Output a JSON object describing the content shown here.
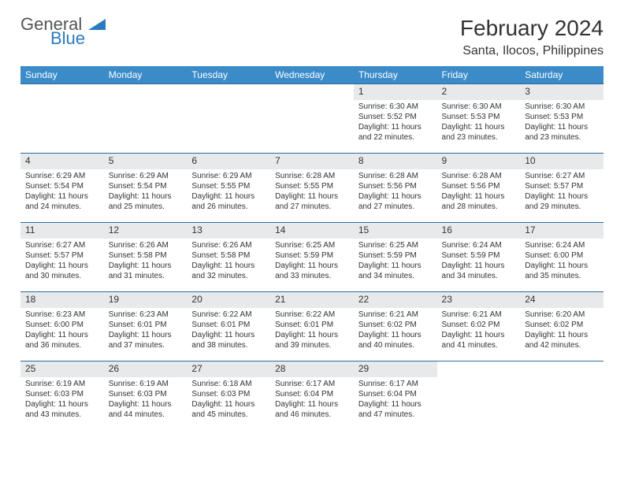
{
  "logo": {
    "text1": "General",
    "text2": "Blue"
  },
  "title": "February 2024",
  "location": "Santa, Ilocos, Philippines",
  "colors": {
    "header_bg": "#3b8bc9",
    "header_text": "#ffffff",
    "daynum_bg": "#e8e9ea",
    "row_border": "#2a6aa0",
    "text": "#333333",
    "logo_blue": "#2a7bbf"
  },
  "weekdays": [
    "Sunday",
    "Monday",
    "Tuesday",
    "Wednesday",
    "Thursday",
    "Friday",
    "Saturday"
  ],
  "weeks": [
    [
      {
        "n": "",
        "sr": "",
        "ss": "",
        "dl": ""
      },
      {
        "n": "",
        "sr": "",
        "ss": "",
        "dl": ""
      },
      {
        "n": "",
        "sr": "",
        "ss": "",
        "dl": ""
      },
      {
        "n": "",
        "sr": "",
        "ss": "",
        "dl": ""
      },
      {
        "n": "1",
        "sr": "Sunrise: 6:30 AM",
        "ss": "Sunset: 5:52 PM",
        "dl": "Daylight: 11 hours and 22 minutes."
      },
      {
        "n": "2",
        "sr": "Sunrise: 6:30 AM",
        "ss": "Sunset: 5:53 PM",
        "dl": "Daylight: 11 hours and 23 minutes."
      },
      {
        "n": "3",
        "sr": "Sunrise: 6:30 AM",
        "ss": "Sunset: 5:53 PM",
        "dl": "Daylight: 11 hours and 23 minutes."
      }
    ],
    [
      {
        "n": "4",
        "sr": "Sunrise: 6:29 AM",
        "ss": "Sunset: 5:54 PM",
        "dl": "Daylight: 11 hours and 24 minutes."
      },
      {
        "n": "5",
        "sr": "Sunrise: 6:29 AM",
        "ss": "Sunset: 5:54 PM",
        "dl": "Daylight: 11 hours and 25 minutes."
      },
      {
        "n": "6",
        "sr": "Sunrise: 6:29 AM",
        "ss": "Sunset: 5:55 PM",
        "dl": "Daylight: 11 hours and 26 minutes."
      },
      {
        "n": "7",
        "sr": "Sunrise: 6:28 AM",
        "ss": "Sunset: 5:55 PM",
        "dl": "Daylight: 11 hours and 27 minutes."
      },
      {
        "n": "8",
        "sr": "Sunrise: 6:28 AM",
        "ss": "Sunset: 5:56 PM",
        "dl": "Daylight: 11 hours and 27 minutes."
      },
      {
        "n": "9",
        "sr": "Sunrise: 6:28 AM",
        "ss": "Sunset: 5:56 PM",
        "dl": "Daylight: 11 hours and 28 minutes."
      },
      {
        "n": "10",
        "sr": "Sunrise: 6:27 AM",
        "ss": "Sunset: 5:57 PM",
        "dl": "Daylight: 11 hours and 29 minutes."
      }
    ],
    [
      {
        "n": "11",
        "sr": "Sunrise: 6:27 AM",
        "ss": "Sunset: 5:57 PM",
        "dl": "Daylight: 11 hours and 30 minutes."
      },
      {
        "n": "12",
        "sr": "Sunrise: 6:26 AM",
        "ss": "Sunset: 5:58 PM",
        "dl": "Daylight: 11 hours and 31 minutes."
      },
      {
        "n": "13",
        "sr": "Sunrise: 6:26 AM",
        "ss": "Sunset: 5:58 PM",
        "dl": "Daylight: 11 hours and 32 minutes."
      },
      {
        "n": "14",
        "sr": "Sunrise: 6:25 AM",
        "ss": "Sunset: 5:59 PM",
        "dl": "Daylight: 11 hours and 33 minutes."
      },
      {
        "n": "15",
        "sr": "Sunrise: 6:25 AM",
        "ss": "Sunset: 5:59 PM",
        "dl": "Daylight: 11 hours and 34 minutes."
      },
      {
        "n": "16",
        "sr": "Sunrise: 6:24 AM",
        "ss": "Sunset: 5:59 PM",
        "dl": "Daylight: 11 hours and 34 minutes."
      },
      {
        "n": "17",
        "sr": "Sunrise: 6:24 AM",
        "ss": "Sunset: 6:00 PM",
        "dl": "Daylight: 11 hours and 35 minutes."
      }
    ],
    [
      {
        "n": "18",
        "sr": "Sunrise: 6:23 AM",
        "ss": "Sunset: 6:00 PM",
        "dl": "Daylight: 11 hours and 36 minutes."
      },
      {
        "n": "19",
        "sr": "Sunrise: 6:23 AM",
        "ss": "Sunset: 6:01 PM",
        "dl": "Daylight: 11 hours and 37 minutes."
      },
      {
        "n": "20",
        "sr": "Sunrise: 6:22 AM",
        "ss": "Sunset: 6:01 PM",
        "dl": "Daylight: 11 hours and 38 minutes."
      },
      {
        "n": "21",
        "sr": "Sunrise: 6:22 AM",
        "ss": "Sunset: 6:01 PM",
        "dl": "Daylight: 11 hours and 39 minutes."
      },
      {
        "n": "22",
        "sr": "Sunrise: 6:21 AM",
        "ss": "Sunset: 6:02 PM",
        "dl": "Daylight: 11 hours and 40 minutes."
      },
      {
        "n": "23",
        "sr": "Sunrise: 6:21 AM",
        "ss": "Sunset: 6:02 PM",
        "dl": "Daylight: 11 hours and 41 minutes."
      },
      {
        "n": "24",
        "sr": "Sunrise: 6:20 AM",
        "ss": "Sunset: 6:02 PM",
        "dl": "Daylight: 11 hours and 42 minutes."
      }
    ],
    [
      {
        "n": "25",
        "sr": "Sunrise: 6:19 AM",
        "ss": "Sunset: 6:03 PM",
        "dl": "Daylight: 11 hours and 43 minutes."
      },
      {
        "n": "26",
        "sr": "Sunrise: 6:19 AM",
        "ss": "Sunset: 6:03 PM",
        "dl": "Daylight: 11 hours and 44 minutes."
      },
      {
        "n": "27",
        "sr": "Sunrise: 6:18 AM",
        "ss": "Sunset: 6:03 PM",
        "dl": "Daylight: 11 hours and 45 minutes."
      },
      {
        "n": "28",
        "sr": "Sunrise: 6:17 AM",
        "ss": "Sunset: 6:04 PM",
        "dl": "Daylight: 11 hours and 46 minutes."
      },
      {
        "n": "29",
        "sr": "Sunrise: 6:17 AM",
        "ss": "Sunset: 6:04 PM",
        "dl": "Daylight: 11 hours and 47 minutes."
      },
      {
        "n": "",
        "sr": "",
        "ss": "",
        "dl": ""
      },
      {
        "n": "",
        "sr": "",
        "ss": "",
        "dl": ""
      }
    ]
  ]
}
